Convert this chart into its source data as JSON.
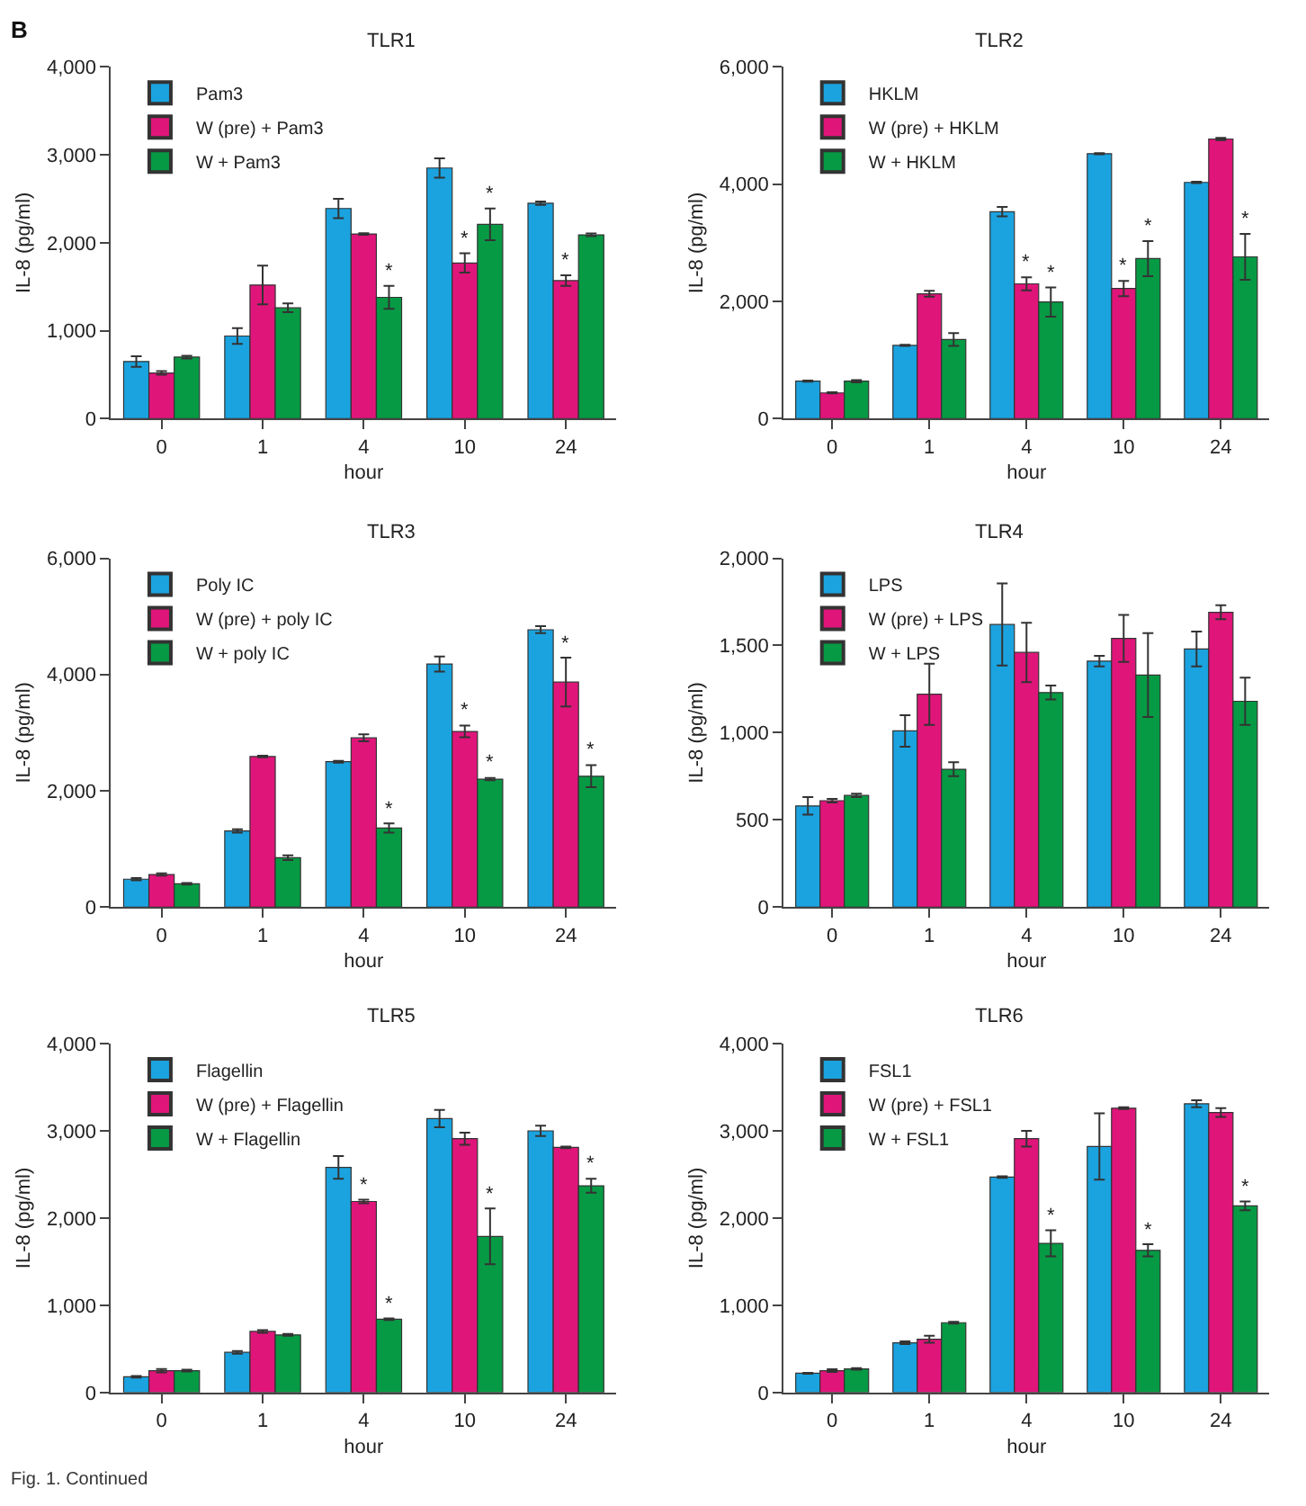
{
  "chart_data": [
    {
      "type": "bar",
      "title": "TLR1",
      "xlabel": "hour",
      "ylabel": "IL-8 (pg/ml)",
      "annotations": [
        "B"
      ],
      "categories": [
        "0",
        "1",
        "4",
        "10",
        "24"
      ],
      "ylim": [
        0,
        4000
      ],
      "yticks": [
        0,
        {
          "value": 1000,
          "label": "1,000"
        },
        {
          "value": 2000,
          "label": "2,000"
        },
        {
          "value": 3000,
          "label": "3,000"
        },
        {
          "value": 4000,
          "label": "4,000"
        }
      ],
      "legend": "top left",
      "series": [
        {
          "name": "Pam3",
          "color": "#1ba3e0",
          "values": [
            650,
            940,
            2390,
            2850,
            2450
          ],
          "errors": [
            60,
            90,
            110,
            110,
            20
          ]
        },
        {
          "name": "W (pre) + Pam3",
          "color": "#e0157a",
          "values": [
            520,
            1520,
            2100,
            1770,
            1570
          ],
          "errors": [
            20,
            220,
            10,
            110,
            60
          ],
          "value_labels": [
            null,
            null,
            null,
            "*",
            "*"
          ]
        },
        {
          "name": "W + Pam3",
          "color": "#079a44",
          "values": [
            700,
            1260,
            1380,
            2210,
            2090
          ],
          "errors": [
            15,
            50,
            130,
            180,
            15
          ],
          "value_labels": [
            null,
            null,
            "*",
            "*",
            null
          ]
        }
      ]
    },
    {
      "type": "bar",
      "title": "TLR2",
      "xlabel": "hour",
      "ylabel": "IL-8 (pg/ml)",
      "categories": [
        "0",
        "1",
        "4",
        "10",
        "24"
      ],
      "ylim": [
        0,
        6000
      ],
      "yticks": [
        0,
        {
          "value": 2000,
          "label": "2,000"
        },
        {
          "value": 4000,
          "label": "4,000"
        },
        {
          "value": 6000,
          "label": "6,000"
        }
      ],
      "legend": "top left",
      "series": [
        {
          "name": "HKLM",
          "color": "#1ba3e0",
          "values": [
            640,
            1250,
            3530,
            4520,
            4030
          ],
          "errors": [
            10,
            10,
            80,
            10,
            10
          ]
        },
        {
          "name": "W (pre) + HKLM",
          "color": "#e0157a",
          "values": [
            440,
            2130,
            2300,
            2220,
            4770
          ],
          "errors": [
            10,
            50,
            110,
            130,
            20
          ],
          "value_labels": [
            null,
            null,
            "*",
            "*",
            null
          ]
        },
        {
          "name": "W + HKLM",
          "color": "#079a44",
          "values": [
            640,
            1350,
            1990,
            2730,
            2760
          ],
          "errors": [
            20,
            110,
            250,
            300,
            390
          ],
          "value_labels": [
            null,
            null,
            "*",
            "*",
            "*"
          ]
        }
      ]
    },
    {
      "type": "bar",
      "title": "TLR3",
      "xlabel": "hour",
      "ylabel": "IL-8 (pg/ml)",
      "categories": [
        "0",
        "1",
        "4",
        "10",
        "24"
      ],
      "ylim": [
        0,
        6000
      ],
      "yticks": [
        0,
        {
          "value": 2000,
          "label": "2,000"
        },
        {
          "value": 4000,
          "label": "4,000"
        },
        {
          "value": 6000,
          "label": "6,000"
        }
      ],
      "legend": "top left",
      "series": [
        {
          "name": "Poly IC",
          "color": "#1ba3e0",
          "values": [
            480,
            1310,
            2500,
            4180,
            4770
          ],
          "errors": [
            20,
            30,
            15,
            130,
            60
          ]
        },
        {
          "name": "W (pre) + poly IC",
          "color": "#e0157a",
          "values": [
            560,
            2590,
            2910,
            3020,
            3870
          ],
          "errors": [
            20,
            15,
            60,
            100,
            420
          ],
          "value_labels": [
            null,
            null,
            null,
            "*",
            "*"
          ]
        },
        {
          "name": "W + poly IC",
          "color": "#079a44",
          "values": [
            400,
            850,
            1360,
            2200,
            2250
          ],
          "errors": [
            15,
            40,
            80,
            20,
            190
          ],
          "value_labels": [
            null,
            null,
            "*",
            "*",
            "*"
          ]
        }
      ]
    },
    {
      "type": "bar",
      "title": "TLR4",
      "xlabel": "hour",
      "ylabel": "IL-8 (pg/ml)",
      "categories": [
        "0",
        "1",
        "4",
        "10",
        "24"
      ],
      "ylim": [
        0,
        2000
      ],
      "yticks": [
        0,
        500,
        {
          "value": 1000,
          "label": "1,000"
        },
        {
          "value": 1500,
          "label": "1,500"
        },
        {
          "value": 2000,
          "label": "2,000"
        }
      ],
      "legend": "top left",
      "series": [
        {
          "name": "LPS",
          "color": "#1ba3e0",
          "values": [
            580,
            1010,
            1620,
            1410,
            1480
          ],
          "errors": [
            50,
            90,
            235,
            30,
            100
          ]
        },
        {
          "name": "W (pre) + LPS",
          "color": "#e0157a",
          "values": [
            610,
            1220,
            1460,
            1540,
            1690
          ],
          "errors": [
            10,
            175,
            170,
            135,
            40
          ]
        },
        {
          "name": "W + LPS",
          "color": "#079a44",
          "values": [
            640,
            790,
            1230,
            1330,
            1180
          ],
          "errors": [
            10,
            40,
            40,
            240,
            135
          ]
        }
      ]
    },
    {
      "type": "bar",
      "title": "TLR5",
      "xlabel": "hour",
      "ylabel": "IL-8 (pg/ml)",
      "categories": [
        "0",
        "1",
        "4",
        "10",
        "24"
      ],
      "ylim": [
        0,
        4000
      ],
      "yticks": [
        0,
        {
          "value": 1000,
          "label": "1,000"
        },
        {
          "value": 2000,
          "label": "2,000"
        },
        {
          "value": 3000,
          "label": "3,000"
        },
        {
          "value": 4000,
          "label": "4,000"
        }
      ],
      "legend": "top left",
      "annotations": [
        "Fig. 1. Continued"
      ],
      "series": [
        {
          "name": "Flagellin",
          "color": "#1ba3e0",
          "values": [
            180,
            460,
            2580,
            3140,
            3000
          ],
          "errors": [
            10,
            15,
            130,
            100,
            60
          ]
        },
        {
          "name": "W (pre) + Flagellin",
          "color": "#e0157a",
          "values": [
            250,
            700,
            2190,
            2910,
            2810
          ],
          "errors": [
            20,
            15,
            20,
            70,
            10
          ],
          "value_labels": [
            null,
            null,
            "*",
            null,
            null
          ]
        },
        {
          "name": "W + Flagellin",
          "color": "#079a44",
          "values": [
            250,
            660,
            840,
            1790,
            2370
          ],
          "errors": [
            10,
            10,
            10,
            320,
            80
          ],
          "value_labels": [
            null,
            null,
            "*",
            "*",
            "*"
          ]
        }
      ]
    },
    {
      "type": "bar",
      "title": "TLR6",
      "xlabel": "hour",
      "ylabel": "IL-8 (pg/ml)",
      "categories": [
        "0",
        "1",
        "4",
        "10",
        "24"
      ],
      "ylim": [
        0,
        4000
      ],
      "yticks": [
        0,
        {
          "value": 1000,
          "label": "1,000"
        },
        {
          "value": 2000,
          "label": "2,000"
        },
        {
          "value": 3000,
          "label": "3,000"
        },
        {
          "value": 4000,
          "label": "4,000"
        }
      ],
      "legend": "top left",
      "series": [
        {
          "name": "FSL1",
          "color": "#1ba3e0",
          "values": [
            220,
            570,
            2470,
            2820,
            3310
          ],
          "errors": [
            5,
            15,
            10,
            380,
            40
          ]
        },
        {
          "name": "W (pre) + FSL1",
          "color": "#e0157a",
          "values": [
            250,
            610,
            2910,
            3260,
            3210
          ],
          "errors": [
            15,
            40,
            90,
            10,
            50
          ]
        },
        {
          "name": "W + FSL1",
          "color": "#079a44",
          "values": [
            270,
            800,
            1710,
            1630,
            2140
          ],
          "errors": [
            10,
            10,
            150,
            70,
            50
          ],
          "value_labels": [
            null,
            null,
            "*",
            "*",
            "*"
          ]
        }
      ]
    }
  ]
}
